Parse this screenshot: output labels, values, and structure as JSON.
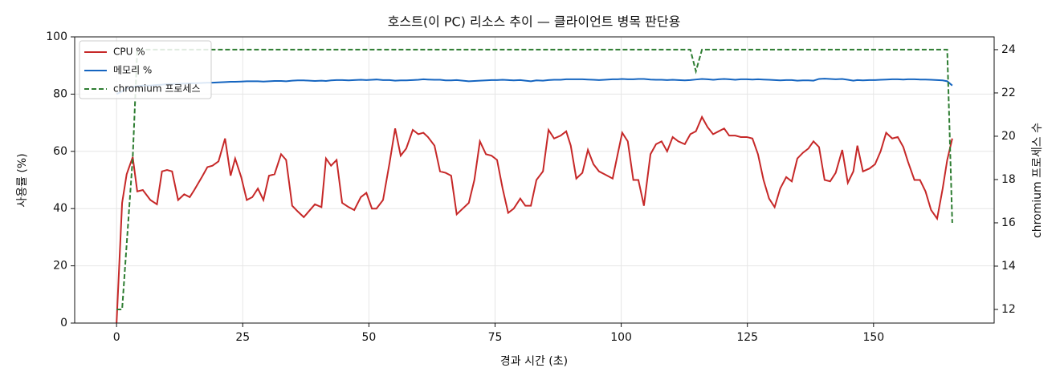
{
  "chart_data": {
    "type": "line",
    "title": "호스트(이 PC) 리소스 추이 — 클라이언트 병목 판단용",
    "x_label": "경과 시간 (초)",
    "y_label": "사용률 (%)",
    "y2_label": "chromium 프로세스 수",
    "xlim": [
      -8.3,
      173.9
    ],
    "xticks": [
      0,
      25,
      50,
      75,
      100,
      125,
      150
    ],
    "ylim": [
      0,
      100
    ],
    "yticks": [
      0,
      20,
      40,
      60,
      80,
      100
    ],
    "y2lim": [
      11.37,
      24.59
    ],
    "y2ticks": [
      12,
      14,
      16,
      18,
      20,
      22,
      24
    ],
    "grid": true,
    "legend": "upper left",
    "x": [
      0,
      1.1,
      2,
      3.2,
      4.1,
      5.2,
      6.7,
      8,
      9,
      10,
      11,
      12.2,
      13.4,
      14.5,
      15.4,
      16.9,
      18,
      19,
      20.2,
      21.5,
      22.6,
      23.5,
      24.7,
      25.8,
      26.9,
      28,
      29.1,
      30.2,
      31.3,
      32.6,
      33.6,
      34.8,
      35.9,
      37.1,
      39.3,
      40.6,
      41.5,
      42.5,
      43.6,
      44.7,
      46,
      47.1,
      48.4,
      49.5,
      50.6,
      51.5,
      52.8,
      54.1,
      55.2,
      56.3,
      57.4,
      58.7,
      59.8,
      60.8,
      61.7,
      63,
      64.1,
      65.2,
      66.3,
      67.4,
      68.6,
      69.8,
      70.9,
      72,
      73.2,
      74.3,
      75.4,
      76.5,
      77.6,
      78.7,
      80,
      81,
      82.1,
      83.2,
      84.5,
      85.6,
      86.7,
      88,
      89.1,
      90,
      91.1,
      92.3,
      93.4,
      94.5,
      95.6,
      96.7,
      98.3,
      99.3,
      100.2,
      101.3,
      102.4,
      103.4,
      104.5,
      105.8,
      106.9,
      108,
      109.1,
      110.2,
      111.3,
      112.6,
      113.7,
      114.8,
      116,
      117.1,
      118.2,
      119.3,
      120.4,
      121.4,
      122.6,
      123.7,
      124.9,
      126,
      127.1,
      128.2,
      129.3,
      130.4,
      131.5,
      132.7,
      133.8,
      134.9,
      136,
      137.1,
      138.1,
      139.2,
      140.3,
      141.4,
      142.5,
      143.8,
      144.9,
      146,
      146.8,
      147.9,
      149.2,
      150.3,
      151.4,
      152.5,
      153.7,
      154.8,
      155.9,
      156.8,
      158.1,
      159.2,
      160.3,
      161.4,
      162.6,
      163.7,
      164.6,
      165.6
    ],
    "series": [
      {
        "name": "CPU %",
        "color": "#c62828",
        "values": [
          0,
          42,
          52,
          58,
          46,
          46.5,
          43,
          41.5,
          53,
          53.5,
          53,
          43,
          45,
          44,
          46.5,
          51,
          54.5,
          55,
          56.5,
          64.5,
          51.5,
          57.5,
          51,
          43,
          44,
          47,
          43,
          51.5,
          52,
          59,
          57,
          41,
          39,
          37,
          41.5,
          40.5,
          57.5,
          55,
          57,
          42,
          40.5,
          39.5,
          44,
          45.5,
          40,
          40,
          43,
          56,
          68,
          58.5,
          61,
          67.5,
          66,
          66.5,
          65,
          62,
          53,
          52.5,
          51.5,
          38,
          40,
          42,
          50,
          63.5,
          59,
          58.5,
          57,
          47,
          38.5,
          40,
          43.5,
          41,
          41,
          50,
          53,
          67.5,
          64.5,
          65.5,
          67,
          62,
          50.5,
          52.5,
          60.5,
          55.5,
          53,
          52,
          50.5,
          59,
          66.5,
          63.5,
          50,
          50,
          41,
          59,
          62.5,
          63.5,
          60,
          65,
          63.5,
          62.5,
          66,
          67,
          72,
          68.5,
          66,
          67,
          68,
          65.5,
          65.5,
          65,
          65,
          64.5,
          59,
          50,
          43.5,
          40.5,
          47,
          51,
          49.5,
          57.5,
          59.5,
          61,
          63.5,
          61.5,
          50,
          49.5,
          52.5,
          60.5,
          49,
          53,
          62,
          53,
          54,
          55.5,
          60,
          66.5,
          64.5,
          65,
          61.5,
          56.5,
          50,
          50,
          46,
          39.5,
          36.5,
          47,
          57,
          64.5
        ]
      },
      {
        "name": "메모리 %",
        "color": "#1565c0",
        "values": [
          80,
          81,
          82,
          82.5,
          82.8,
          83,
          83,
          83.2,
          83.3,
          83.5,
          83.5,
          83.6,
          83.7,
          83.8,
          83.8,
          83.9,
          84,
          84,
          84.1,
          84.2,
          84.3,
          84.3,
          84.4,
          84.5,
          84.5,
          84.5,
          84.4,
          84.5,
          84.6,
          84.6,
          84.5,
          84.7,
          84.8,
          84.8,
          84.6,
          84.7,
          84.6,
          84.8,
          84.9,
          84.9,
          84.8,
          84.9,
          85,
          84.9,
          85,
          85.1,
          84.9,
          84.9,
          84.7,
          84.8,
          84.8,
          84.9,
          85,
          85.2,
          85.1,
          85,
          85,
          84.8,
          84.8,
          84.9,
          84.7,
          84.5,
          84.6,
          84.7,
          84.8,
          84.9,
          84.9,
          85,
          84.9,
          84.8,
          84.9,
          84.7,
          84.5,
          84.8,
          84.7,
          84.9,
          85,
          85,
          85.2,
          85.2,
          85.2,
          85.2,
          85.1,
          85,
          84.9,
          85,
          85.2,
          85.2,
          85.3,
          85.2,
          85.2,
          85.3,
          85.3,
          85.1,
          85,
          85,
          84.9,
          85,
          84.9,
          84.8,
          84.9,
          85.1,
          85.3,
          85.2,
          85,
          85.2,
          85.3,
          85.2,
          85,
          85.2,
          85.2,
          85.1,
          85.2,
          85.1,
          85,
          84.9,
          84.8,
          84.9,
          84.9,
          84.7,
          84.8,
          84.8,
          84.7,
          85.3,
          85.4,
          85.3,
          85.2,
          85.3,
          85,
          84.7,
          84.9,
          84.8,
          84.9,
          84.9,
          85,
          85.1,
          85.2,
          85.2,
          85.1,
          85.2,
          85.2,
          85.1,
          85.1,
          85,
          84.9,
          84.8,
          84.5,
          83
        ]
      },
      {
        "name": "chromium 프로세스",
        "color": "#2e7d32",
        "dashed": true,
        "axis": "y2",
        "values": [
          12,
          12,
          15,
          19,
          24,
          24,
          24,
          24,
          24,
          24,
          24,
          24,
          24,
          24,
          24,
          24,
          24,
          24,
          24,
          24,
          24,
          24,
          24,
          24,
          24,
          24,
          24,
          24,
          24,
          24,
          24,
          24,
          24,
          24,
          24,
          24,
          24,
          24,
          24,
          24,
          24,
          24,
          24,
          24,
          24,
          24,
          24,
          24,
          24,
          24,
          24,
          24,
          24,
          24,
          24,
          24,
          24,
          24,
          24,
          24,
          24,
          24,
          24,
          24,
          24,
          24,
          24,
          24,
          24,
          24,
          24,
          24,
          24,
          24,
          24,
          24,
          24,
          24,
          24,
          24,
          24,
          24,
          24,
          24,
          24,
          24,
          24,
          24,
          24,
          24,
          24,
          24,
          24,
          24,
          24,
          24,
          24,
          24,
          24,
          24,
          24,
          23,
          24,
          24,
          24,
          24,
          24,
          24,
          24,
          24,
          24,
          24,
          24,
          24,
          24,
          24,
          24,
          24,
          24,
          24,
          24,
          24,
          24,
          24,
          24,
          24,
          24,
          24,
          24,
          24,
          24,
          24,
          24,
          24,
          24,
          24,
          24,
          24,
          24,
          24,
          24,
          24,
          24,
          24,
          24,
          24,
          24,
          16
        ]
      }
    ]
  }
}
